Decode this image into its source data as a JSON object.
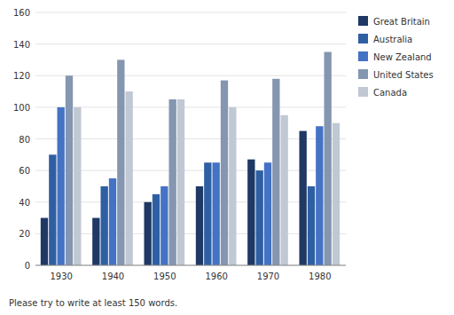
{
  "chart_data": {
    "type": "bar",
    "categories": [
      "1930",
      "1940",
      "1950",
      "1960",
      "1970",
      "1980"
    ],
    "series": [
      {
        "name": "Great Britain",
        "color": "#1f3864",
        "values": [
          30,
          30,
          40,
          50,
          67,
          85
        ]
      },
      {
        "name": "Australia",
        "color": "#2e5fa3",
        "values": [
          70,
          50,
          45,
          65,
          60,
          50
        ]
      },
      {
        "name": "New Zealand",
        "color": "#4472c4",
        "values": [
          100,
          55,
          50,
          65,
          65,
          88
        ]
      },
      {
        "name": "United States",
        "color": "#8496b0",
        "values": [
          120,
          130,
          105,
          117,
          118,
          135
        ]
      },
      {
        "name": "Canada",
        "color": "#c0c8d4",
        "values": [
          100,
          110,
          105,
          100,
          95,
          90
        ]
      }
    ],
    "ylim": [
      0,
      160
    ],
    "yticks": [
      0,
      20,
      40,
      60,
      80,
      100,
      120,
      140,
      160
    ],
    "grid": true,
    "legend": "right",
    "annotations": [
      "Please try to write at least 150 words."
    ]
  }
}
